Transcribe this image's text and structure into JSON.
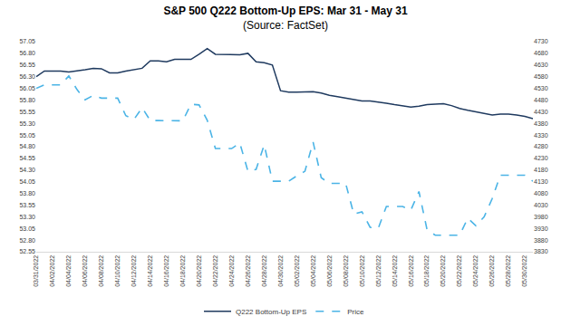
{
  "chart_data": {
    "type": "line",
    "title": "S&P 500 Q222 Bottom-Up EPS: Mar 31 - May 31",
    "subtitle": "(Source: FactSet)",
    "categories": [
      "03/31/2022",
      null,
      "04/02/2022",
      null,
      "04/04/2022",
      null,
      "04/06/2022",
      null,
      "04/08/2022",
      null,
      "04/10/2022",
      null,
      "04/12/2022",
      null,
      "04/14/2022",
      null,
      "04/16/2022",
      null,
      "04/18/2022",
      null,
      "04/20/2022",
      null,
      "04/22/2022",
      null,
      "04/24/2022",
      null,
      "04/26/2022",
      null,
      "04/28/2022",
      null,
      "04/30/2022",
      null,
      "05/02/2022",
      null,
      "05/04/2022",
      null,
      "05/06/2022",
      null,
      "05/08/2022",
      null,
      "05/10/2022",
      null,
      "05/12/2022",
      null,
      "05/14/2022",
      null,
      "05/16/2022",
      null,
      "05/18/2022",
      null,
      "05/20/2022",
      null,
      "05/22/2022",
      null,
      "05/24/2022",
      null,
      "05/26/2022",
      null,
      "05/28/2022",
      null,
      "05/30/2022",
      null
    ],
    "series": [
      {
        "name": "Q222 Bottom-Up EPS",
        "color": "#1f3a5f",
        "line_style": "solid",
        "values": [
          56.3,
          56.42,
          56.42,
          56.42,
          56.4,
          56.42,
          56.45,
          56.48,
          56.47,
          56.38,
          56.38,
          56.42,
          56.45,
          56.48,
          56.64,
          56.64,
          56.62,
          56.67,
          56.67,
          56.67,
          56.78,
          56.9,
          56.78,
          56.78,
          56.77,
          56.77,
          56.8,
          56.62,
          56.6,
          56.55,
          56.0,
          55.97,
          55.97,
          55.97,
          55.98,
          55.95,
          55.9,
          55.87,
          55.84,
          55.8,
          55.78,
          55.78,
          55.76,
          55.73,
          55.7,
          55.68,
          55.65,
          55.67,
          55.7,
          55.71,
          55.72,
          55.68,
          55.62,
          55.58,
          55.55,
          55.52,
          55.48,
          55.5,
          55.5,
          55.48,
          55.45,
          55.4
        ]
      },
      {
        "name": "Price",
        "color": "#4bb4e6",
        "line_style": "dash",
        "axis": "y2",
        "values": [
          4530,
          4545,
          4545,
          4545,
          4583,
          4525,
          4481,
          4500,
          4488,
          4488,
          4488,
          4413,
          4397,
          4447,
          4392,
          4392,
          4392,
          4392,
          4391,
          4462,
          4459,
          4393,
          4272,
          4272,
          4272,
          4296,
          4175,
          4183,
          4288,
          4132,
          4132,
          4132,
          4155,
          4175,
          4300,
          4147,
          4123,
          4123,
          4123,
          3991,
          4001,
          3935,
          3930,
          4024,
          4024,
          4024,
          4008,
          4088,
          3924,
          3901,
          3901,
          3901,
          3901,
          3974,
          3941,
          3979,
          4058,
          4158,
          4158,
          4158,
          4158,
          4132
        ]
      }
    ],
    "ylim": [
      52.55,
      57.05
    ],
    "yticks": [
      52.55,
      {
        "value": 52.8,
        "label": "52.80"
      },
      53.05,
      {
        "value": 53.3,
        "label": "53.30"
      },
      53.55,
      {
        "value": 53.8,
        "label": "53.80"
      },
      54.05,
      {
        "value": 54.3,
        "label": "54.30"
      },
      54.55,
      {
        "value": 54.8,
        "label": "54.80"
      },
      55.05,
      {
        "value": 55.3,
        "label": "55.30"
      },
      55.55,
      {
        "value": 55.8,
        "label": "55.80"
      },
      56.05,
      {
        "value": 56.3,
        "label": "56.30"
      },
      56.55,
      {
        "value": 56.8,
        "label": "56.80"
      },
      57.05
    ],
    "y2lim": [
      3830,
      4730
    ],
    "y2ticks": [
      3830,
      3880,
      3930,
      3980,
      4030,
      4080,
      4130,
      4180,
      4230,
      4280,
      4330,
      4380,
      4430,
      4480,
      4530,
      4580,
      4630,
      4680,
      4730
    ],
    "grid": false,
    "legend": "bottom"
  }
}
